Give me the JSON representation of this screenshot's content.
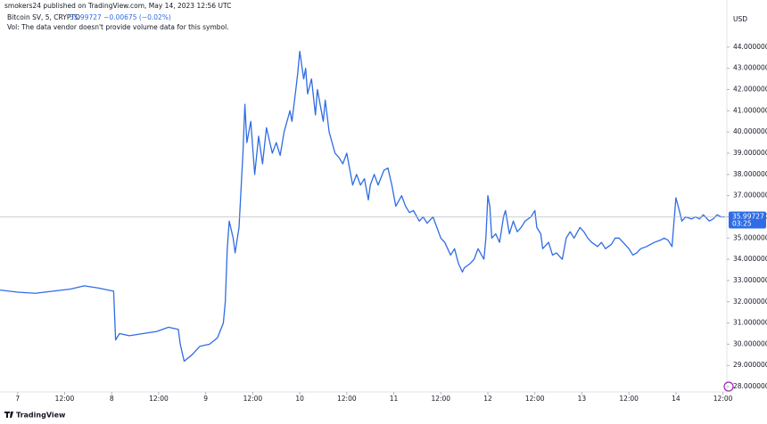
{
  "header": {
    "published": "smokers24 published on TradingView.com, May 14, 2023 12:56 UTC",
    "symbol": "Bitcoin SV, 5, CRYPTO",
    "quote": "35.99727 −0.00675 (−0.02%)",
    "volume_note": "Vol: The data vendor doesn't provide volume data for this symbol."
  },
  "footer": {
    "logo": "TradingView"
  },
  "chart_data": {
    "type": "line",
    "y_axis_unit": "USD",
    "color": "#2f6ce5",
    "grid": false,
    "last_value": 35.99727,
    "countdown": "03:25",
    "xlim": [
      -4.5,
      181
    ],
    "ylim": [
      27.75,
      45.8
    ],
    "xticks": [
      {
        "value": 0,
        "label": "7"
      },
      {
        "value": 12,
        "label": "12:00"
      },
      {
        "value": 24,
        "label": "8"
      },
      {
        "value": 36,
        "label": "12:00"
      },
      {
        "value": 48,
        "label": "9"
      },
      {
        "value": 60,
        "label": "12:00"
      },
      {
        "value": 72,
        "label": "10"
      },
      {
        "value": 84,
        "label": "12:00"
      },
      {
        "value": 96,
        "label": "11"
      },
      {
        "value": 108,
        "label": "12:00"
      },
      {
        "value": 120,
        "label": "12"
      },
      {
        "value": 132,
        "label": "12:00"
      },
      {
        "value": 144,
        "label": "13"
      },
      {
        "value": 156,
        "label": "12:00"
      },
      {
        "value": 168,
        "label": "14"
      },
      {
        "value": 180,
        "label": "12:00"
      }
    ],
    "yticks": [
      {
        "value": 28,
        "label": "28.000000"
      },
      {
        "value": 29,
        "label": "29.000000"
      },
      {
        "value": 30,
        "label": "30.000000"
      },
      {
        "value": 31,
        "label": "31.000000"
      },
      {
        "value": 32,
        "label": "32.000000"
      },
      {
        "value": 33,
        "label": "33.000000"
      },
      {
        "value": 34,
        "label": "34.000000"
      },
      {
        "value": 35,
        "label": "35.000000"
      },
      {
        "value": 36,
        "label": "36.000000"
      },
      {
        "value": 37,
        "label": "37.000000"
      },
      {
        "value": 38,
        "label": "38.000000"
      },
      {
        "value": 39,
        "label": "39.000000"
      },
      {
        "value": 40,
        "label": "40.000000"
      },
      {
        "value": 41,
        "label": "41.000000"
      },
      {
        "value": 42,
        "label": "42.000000"
      },
      {
        "value": 43,
        "label": "43.000000"
      },
      {
        "value": 44,
        "label": "44.000000"
      }
    ],
    "x": [
      -4.5,
      0,
      4.5,
      9,
      13.5,
      17,
      20.5,
      24.5,
      25,
      26,
      28.5,
      32,
      35.5,
      38.5,
      41,
      41.5,
      42.5,
      44.5,
      46.5,
      49,
      51,
      52.5,
      53,
      53.5,
      54,
      55,
      55.5,
      56.5,
      57.5,
      58,
      58.5,
      59.5,
      60.5,
      61.5,
      62.5,
      63.5,
      65,
      66,
      67,
      68,
      69.5,
      70,
      71,
      71.5,
      72,
      73,
      73.5,
      74,
      75,
      76,
      76.5,
      77.5,
      78,
      78.5,
      79.5,
      81,
      82,
      83,
      84,
      85.5,
      86.5,
      87.5,
      88.5,
      89.5,
      90,
      91,
      92,
      93.5,
      94.5,
      95.5,
      96.5,
      98,
      99,
      100,
      101,
      102.5,
      103.5,
      104.5,
      106,
      107,
      108,
      109,
      110.5,
      111.5,
      112.5,
      113.5,
      114,
      115.5,
      116.5,
      117.5,
      119,
      119.5,
      120,
      120.5,
      121,
      122,
      123,
      124,
      124.5,
      125.5,
      126.5,
      127.5,
      128.5,
      129.5,
      131,
      132,
      132.5,
      133.5,
      134,
      135.5,
      136.5,
      137.5,
      139,
      140,
      141,
      142,
      143.5,
      144.5,
      145.5,
      146.5,
      148,
      149,
      150,
      151.5,
      152.5,
      153.5,
      154.5,
      156,
      157,
      158,
      159,
      160.5,
      161.5,
      162.5,
      164,
      165,
      166,
      167,
      168,
      169,
      169.5,
      170.5,
      172,
      173,
      174,
      175,
      176.5,
      177.5,
      178.5,
      179.5,
      180.5
    ],
    "values": [
      32.55,
      32.45,
      32.4,
      32.5,
      32.6,
      32.75,
      32.65,
      32.5,
      30.2,
      30.5,
      30.4,
      30.5,
      30.6,
      30.8,
      30.7,
      30.0,
      29.2,
      29.5,
      29.9,
      30.0,
      30.3,
      31.0,
      32.0,
      34.5,
      35.8,
      35.0,
      34.3,
      35.5,
      39.0,
      41.3,
      39.5,
      40.5,
      38.0,
      39.8,
      38.5,
      40.2,
      39.0,
      39.5,
      38.9,
      40.0,
      41.0,
      40.5,
      42.0,
      42.8,
      43.8,
      42.5,
      43.0,
      41.8,
      42.5,
      40.8,
      42.0,
      41.0,
      40.5,
      41.5,
      40.0,
      39.0,
      38.8,
      38.5,
      39.0,
      37.5,
      38.0,
      37.5,
      37.8,
      36.8,
      37.5,
      38.0,
      37.5,
      38.2,
      38.3,
      37.5,
      36.5,
      37.0,
      36.5,
      36.2,
      36.3,
      35.8,
      36.0,
      35.7,
      36.0,
      35.5,
      35.0,
      34.8,
      34.2,
      34.5,
      33.8,
      33.4,
      33.6,
      33.8,
      34.0,
      34.5,
      34.0,
      35.0,
      37.0,
      36.5,
      35.0,
      35.2,
      34.8,
      36.0,
      36.3,
      35.2,
      35.8,
      35.3,
      35.5,
      35.8,
      36.0,
      36.3,
      35.5,
      35.2,
      34.5,
      34.8,
      34.2,
      34.3,
      34.0,
      35.0,
      35.3,
      35.0,
      35.5,
      35.3,
      35.0,
      34.8,
      34.6,
      34.8,
      34.5,
      34.7,
      35.0,
      35.0,
      34.8,
      34.5,
      34.2,
      34.3,
      34.5,
      34.6,
      34.7,
      34.8,
      34.9,
      35.0,
      34.9,
      34.6,
      36.9,
      36.2,
      35.8,
      36.0,
      35.9,
      36.0,
      35.9,
      36.1,
      35.8,
      35.9,
      36.1,
      36.0,
      35.99727
    ]
  }
}
